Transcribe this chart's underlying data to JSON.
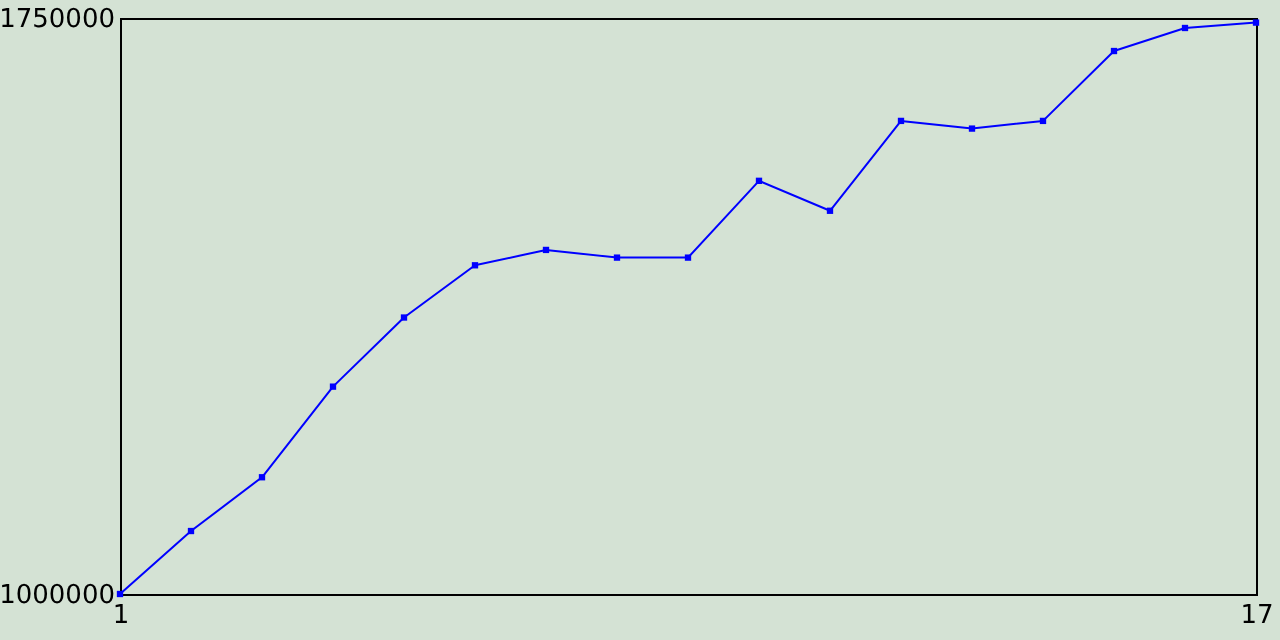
{
  "chart_data": {
    "type": "line",
    "x": [
      1,
      2,
      3,
      4,
      5,
      6,
      7,
      8,
      9,
      10,
      11,
      12,
      13,
      14,
      15,
      16,
      17
    ],
    "series": [
      {
        "color": "#0000ff",
        "values": [
          1000000,
          1082000,
          1152000,
          1270000,
          1360000,
          1428000,
          1448000,
          1438000,
          1438000,
          1538000,
          1499000,
          1616000,
          1606000,
          1616000,
          1707000,
          1737000,
          1744000
        ]
      }
    ],
    "xlim": [
      1,
      17
    ],
    "xticks": [
      1,
      17
    ],
    "ylim": [
      1000000,
      1750000
    ],
    "yticks": [
      1000000,
      1750000
    ],
    "grid": false,
    "marker": "square",
    "line_style": "solid"
  }
}
